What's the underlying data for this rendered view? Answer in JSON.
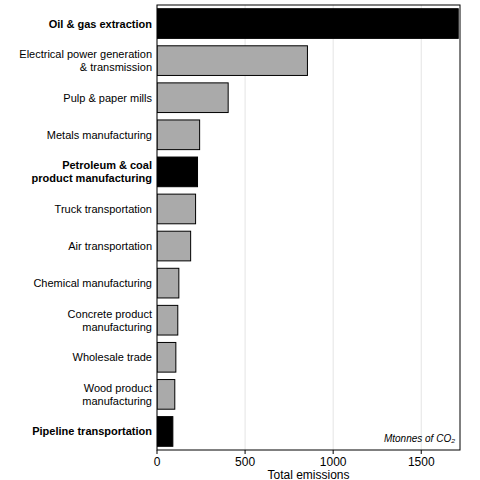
{
  "chart_data": {
    "type": "bar",
    "orientation": "horizontal",
    "categories": [
      "Oil & gas extraction",
      "Electrical power generation\n& transmission",
      "Pulp & paper mills",
      "Metals manufacturing",
      "Petroleum & coal\nproduct manufacturing",
      "Truck transportation",
      "Air transportation",
      "Chemical manufacturing",
      "Concrete product\nmanufacturing",
      "Wholesale trade",
      "Wood product\nmanufacturing",
      "Pipeline transportation"
    ],
    "values": [
      1710,
      854,
      404,
      242,
      230,
      219,
      191,
      124,
      118,
      107,
      101,
      90
    ],
    "colors": [
      "#000000",
      "#aaaaaa",
      "#aaaaaa",
      "#aaaaaa",
      "#000000",
      "#aaaaaa",
      "#aaaaaa",
      "#aaaaaa",
      "#aaaaaa",
      "#aaaaaa",
      "#aaaaaa",
      "#000000"
    ],
    "x_label": "Total emissions",
    "annotation": "Mtonnes of CO₂",
    "xlim": [
      0,
      1720
    ],
    "xticks": [
      0,
      500,
      1000,
      1500
    ],
    "grid": true
  }
}
